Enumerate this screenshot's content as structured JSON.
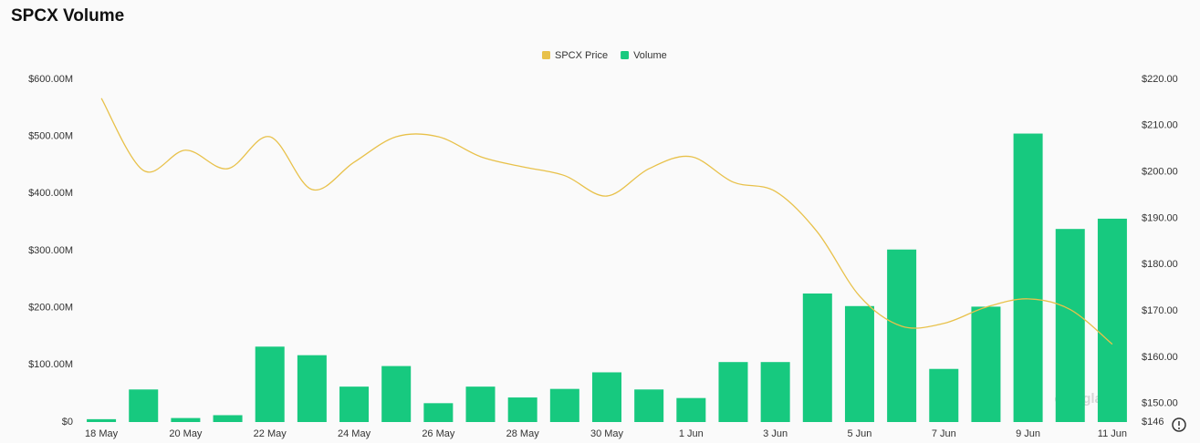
{
  "chart_data": {
    "type": "bar",
    "title": "SPCX Volume",
    "categories": [
      "18 May",
      null,
      "20 May",
      null,
      "22 May",
      null,
      "24 May",
      null,
      "26 May",
      null,
      "28 May",
      null,
      "30 May",
      null,
      "1 Jun",
      null,
      "3 Jun",
      null,
      "5 Jun",
      null,
      "7 Jun",
      null,
      "9 Jun",
      null,
      "11 Jun"
    ],
    "series": [
      {
        "name": "SPCX Price",
        "color": "#e8c14a",
        "type": "line",
        "axis": "y2",
        "values": [
          215.9,
          200.3,
          204.7,
          200.7,
          207.6,
          196.2,
          202.1,
          207.6,
          207.6,
          203.3,
          201.1,
          199.2,
          194.8,
          200.7,
          203.3,
          197.8,
          195.8,
          187.0,
          173.2,
          166.7,
          167.3,
          170.8,
          172.6,
          170.3,
          162.8
        ]
      },
      {
        "name": "Volume",
        "color": "#17c97f",
        "type": "bar",
        "values": [
          5,
          57,
          7,
          12,
          132,
          117,
          62,
          98,
          33,
          62,
          43,
          58,
          87,
          57,
          42,
          105,
          105,
          225,
          203,
          302,
          93,
          202,
          505,
          338,
          356
        ]
      }
    ],
    "ylim": [
      0,
      600
    ],
    "yticks": [
      {
        "value": 0,
        "label": "$0"
      },
      {
        "value": 100,
        "label": "$100.00M"
      },
      {
        "value": 200,
        "label": "$200.00M"
      },
      {
        "value": 300,
        "label": "$300.00M"
      },
      {
        "value": 400,
        "label": "$400.00M"
      },
      {
        "value": 500,
        "label": "$500.00M"
      },
      {
        "value": 600,
        "label": "$600.00M"
      }
    ],
    "y2lim": [
      146,
      220
    ],
    "y2ticks": [
      {
        "value": 146,
        "label": "$146"
      },
      {
        "value": 150,
        "label": "$150.00"
      },
      {
        "value": 160,
        "label": "$160.00"
      },
      {
        "value": 170,
        "label": "$170.00"
      },
      {
        "value": 180,
        "label": "$180.00"
      },
      {
        "value": 190,
        "label": "$190.00"
      },
      {
        "value": 200,
        "label": "$200.00"
      },
      {
        "value": 210,
        "label": "$210.00"
      },
      {
        "value": 220,
        "label": "$220.00"
      }
    ],
    "grid": false,
    "legend": "top",
    "watermark": "coinglass"
  }
}
